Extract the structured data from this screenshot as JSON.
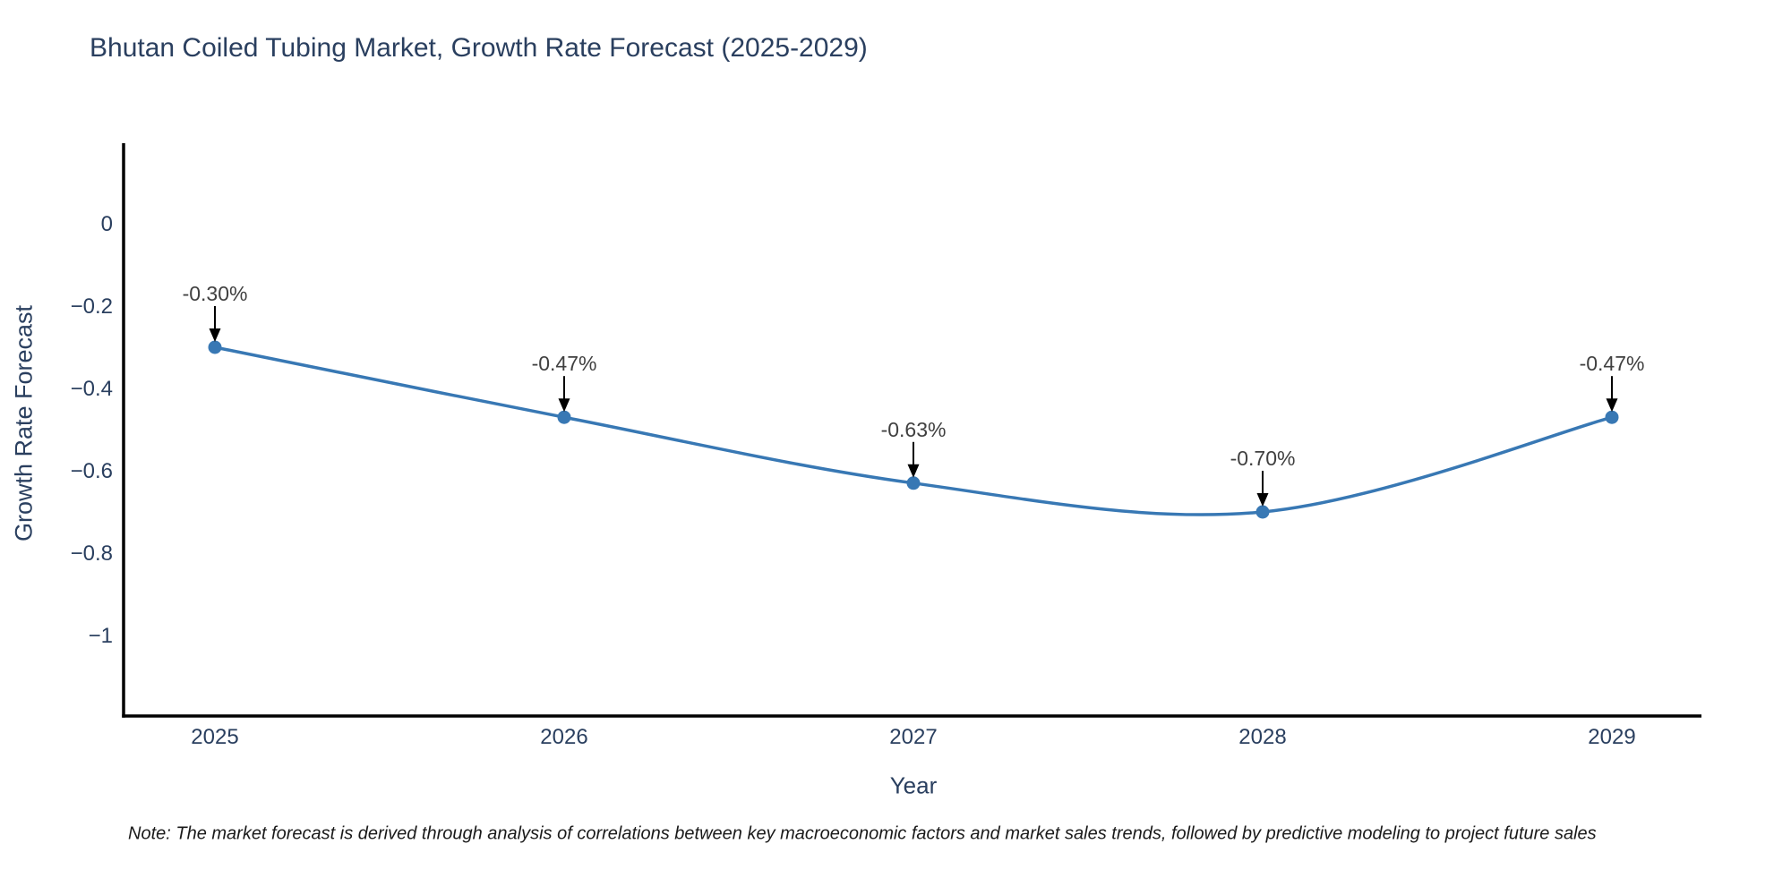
{
  "title": "Bhutan Coiled Tubing Market, Growth Rate Forecast (2025-2029)",
  "note": "Note: The market forecast is derived through analysis of correlations between key macroeconomic factors and market sales trends, followed by predictive modeling to project future sales",
  "colors": {
    "title_text": "#2a3f5f",
    "tick_text": "#2a3f5f",
    "annotation_text": "#404040",
    "note_text": "#1a1a1a",
    "axis_line": "#000000",
    "background": "#ffffff"
  },
  "chart_data": {
    "type": "line",
    "title": "Bhutan Coiled Tubing Market, Growth Rate Forecast (2025-2029)",
    "xlabel": "Year",
    "ylabel": "Growth Rate Forecast",
    "categories": [
      "2025",
      "2026",
      "2027",
      "2028",
      "2029"
    ],
    "series": [
      {
        "name": "Growth Rate Forecast",
        "values": [
          -0.3,
          -0.47,
          -0.63,
          -0.7,
          -0.47
        ]
      }
    ],
    "point_labels": [
      "-0.30%",
      "-0.47%",
      "-0.63%",
      "-0.70%",
      "-0.47%"
    ],
    "ytick_values": [
      0,
      -0.2,
      -0.4,
      -0.6,
      -0.8,
      -1
    ],
    "ytick_labels": [
      "0",
      "−0.2",
      "−0.4",
      "−0.6",
      "−0.8",
      "−1"
    ],
    "ylim": [
      -1.2,
      0.2
    ],
    "line_shape": "spline",
    "line_color": "#3878b4",
    "marker_color": "#3878b4",
    "arrow_color": "#000000",
    "grid": false,
    "legend": false
  }
}
